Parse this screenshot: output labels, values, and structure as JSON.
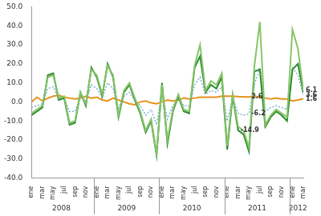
{
  "chart_data": {
    "type": "line",
    "categories": [
      "ene",
      null,
      "mar",
      null,
      "may",
      null,
      "jul",
      null,
      "sep",
      null,
      "nov",
      null,
      "ene",
      null,
      "mar",
      null,
      "may",
      null,
      "jul",
      null,
      "sep",
      null,
      "nov",
      null,
      "ene",
      null,
      "mar",
      null,
      "may",
      null,
      "jul",
      null,
      "sep",
      null,
      "nov",
      null,
      "ene",
      null,
      "mar",
      null,
      "may",
      null,
      "jul",
      null,
      "sep",
      null,
      "nov",
      null,
      "ene",
      null,
      "mar"
    ],
    "x_groups": [
      {
        "label": "2008",
        "span": 12
      },
      {
        "label": "2009",
        "span": 12
      },
      {
        "label": "2010",
        "span": 12
      },
      {
        "label": "2011",
        "span": 12
      },
      {
        "label": "2012",
        "span": 3
      }
    ],
    "series": [
      {
        "color": "#86c46a",
        "line_style": "solid",
        "marker": "none",
        "values": [
          -6,
          -4,
          -2,
          13,
          14,
          2,
          3,
          -11,
          -10,
          5,
          -1,
          17,
          14,
          4,
          19,
          14,
          -7,
          6,
          10,
          2,
          -5,
          -15,
          -9,
          -27,
          9,
          -20,
          -4,
          4,
          -4,
          -5,
          19,
          30,
          6,
          11,
          9,
          15,
          -23,
          4,
          -13,
          -15,
          -24,
          19,
          42,
          -12,
          -7,
          -4,
          -6,
          -8,
          38,
          28,
          6.1
        ]
      },
      {
        "color": "#2a8a2a",
        "line_style": "solid",
        "marker": "none",
        "values": [
          -7,
          -5,
          -3,
          14,
          15,
          1,
          2,
          -12,
          -11,
          5,
          -2,
          18,
          13,
          3,
          20,
          13,
          -8,
          5,
          9,
          1,
          -6,
          -16,
          -10,
          -28,
          10,
          -22,
          -5,
          3,
          -5,
          -6,
          18,
          24,
          5,
          9,
          7,
          13,
          -25,
          3,
          -14.9,
          -17,
          -26,
          16,
          17,
          -13,
          -8,
          -5,
          -7,
          -10,
          17,
          20,
          5
        ]
      },
      {
        "color": "#7fb2d9",
        "line_style": "dotted",
        "marker": "none",
        "values": [
          -3,
          -2,
          -1,
          7,
          8,
          1,
          2,
          -5,
          -5,
          3,
          0,
          9,
          7,
          2,
          10,
          7,
          -3,
          3,
          5,
          1,
          -2,
          -7,
          -4,
          -12,
          5,
          -9,
          -2,
          2,
          -2,
          -2,
          9,
          13,
          4,
          6,
          5,
          8,
          -10,
          2,
          -6,
          -7,
          -6.2,
          9,
          18,
          -5,
          -3,
          -2,
          -3,
          -4,
          18,
          14,
          3.6
        ]
      },
      {
        "color": "#e8921a",
        "line_style": "solid",
        "marker": "none",
        "values": [
          0,
          2.5,
          0.5,
          2,
          3,
          3.5,
          2.5,
          2,
          1.5,
          2,
          3,
          2,
          2.5,
          1,
          0.5,
          2,
          1,
          0,
          -1,
          -1.5,
          0,
          0.5,
          -0.5,
          -1,
          0,
          1,
          0.5,
          1,
          2,
          1.5,
          2,
          2.5,
          2.5,
          2.5,
          2.5,
          3,
          3,
          3,
          2.8,
          2.7,
          2.6,
          3,
          2.5,
          2,
          1.5,
          2,
          1.5,
          1.5,
          0.5,
          1,
          1.6
        ]
      }
    ],
    "annotations": [
      {
        "text": "2.6",
        "series": 3,
        "index": 40
      },
      {
        "text": "-6.2",
        "series": 2,
        "index": 40
      },
      {
        "text": "-14.9",
        "series": 1,
        "index": 38
      },
      {
        "text": "6.1",
        "series": 0,
        "index": 50
      },
      {
        "text": "3.6",
        "series": 2,
        "index": 50
      },
      {
        "text": "1.6",
        "series": 3,
        "index": 50
      }
    ],
    "ylim": [
      -40,
      50
    ],
    "yticks": [
      {
        "value": -40,
        "label": "-40.0"
      },
      {
        "value": -30,
        "label": "-30.0"
      },
      {
        "value": -20,
        "label": "-20.0"
      },
      {
        "value": -10,
        "label": "-10.0"
      },
      {
        "value": 0,
        "label": "0.0"
      },
      {
        "value": 10,
        "label": "10.0"
      },
      {
        "value": 20,
        "label": "20.0"
      },
      {
        "value": 30,
        "label": "30.0"
      },
      {
        "value": 40,
        "label": "40.0"
      },
      {
        "value": 50,
        "label": "50.0"
      }
    ],
    "grid": false,
    "legend": "none"
  }
}
